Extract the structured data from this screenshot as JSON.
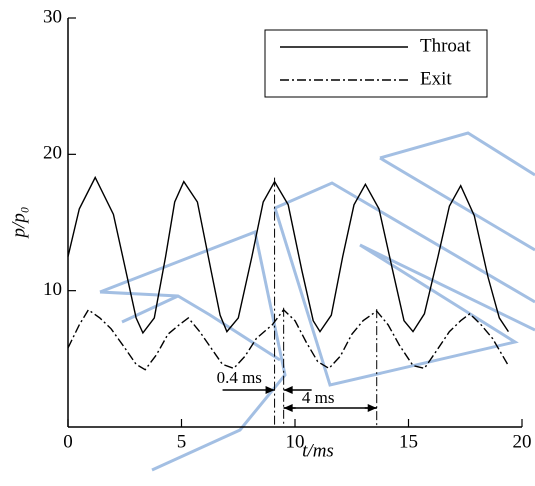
{
  "chart_data": {
    "type": "line",
    "xlabel": "t/ms",
    "ylabel": "p/p₀",
    "xlim": [
      0,
      20
    ],
    "xticks": [
      0,
      5,
      10,
      15,
      20
    ],
    "ylim": [
      0,
      30
    ],
    "yticks": [
      10,
      20,
      30
    ],
    "legend": "upper right",
    "series": [
      {
        "name": "Throat",
        "color": "#000000",
        "dash": "solid",
        "x": [
          0,
          0.5,
          1.2,
          2.0,
          2.5,
          3.0,
          3.3,
          3.8,
          4.3,
          4.7,
          5.1,
          5.7,
          6.3,
          6.7,
          7.0,
          7.5,
          8.1,
          8.6,
          9.1,
          9.7,
          10.3,
          10.8,
          11.1,
          11.6,
          12.1,
          12.6,
          13.1,
          13.7,
          14.3,
          14.8,
          15.2,
          15.7,
          16.3,
          16.8,
          17.3,
          17.9,
          18.5,
          19.0,
          19.4
        ],
        "values": [
          12.5,
          16.0,
          18.3,
          15.6,
          11.8,
          8.0,
          6.9,
          8.0,
          12.5,
          16.5,
          18.0,
          16.5,
          11.5,
          8.2,
          7.0,
          8.0,
          12.5,
          16.5,
          18.0,
          16.3,
          11.5,
          7.8,
          7.0,
          8.2,
          12.5,
          16.3,
          17.8,
          16.0,
          11.5,
          7.8,
          7.0,
          8.3,
          12.5,
          16.2,
          17.7,
          15.5,
          11.0,
          8.0,
          7.0
        ]
      },
      {
        "name": "Exit",
        "color": "#000000",
        "dash": "dashdot",
        "x": [
          0,
          0.5,
          0.9,
          1.4,
          1.9,
          2.5,
          3.0,
          3.4,
          3.9,
          4.4,
          4.9,
          5.3,
          5.8,
          6.3,
          6.8,
          7.3,
          7.8,
          8.3,
          9.0,
          9.5,
          10.0,
          10.5,
          11.0,
          11.5,
          12.0,
          12.5,
          13.0,
          13.6,
          14.1,
          14.6,
          15.2,
          15.7,
          16.2,
          16.8,
          17.3,
          17.7,
          18.2,
          18.7,
          19.4
        ],
        "values": [
          5.8,
          7.5,
          8.6,
          8.0,
          7.2,
          5.8,
          4.6,
          4.2,
          5.3,
          6.8,
          7.5,
          8.0,
          7.0,
          5.8,
          4.6,
          4.3,
          5.2,
          6.5,
          7.5,
          8.6,
          7.8,
          6.2,
          4.8,
          4.3,
          5.2,
          6.8,
          7.8,
          8.5,
          7.5,
          6.0,
          4.5,
          4.3,
          5.5,
          7.0,
          7.8,
          8.3,
          7.5,
          6.5,
          4.5
        ]
      }
    ],
    "annotations": [
      "0.4 ms",
      "4 ms"
    ]
  }
}
